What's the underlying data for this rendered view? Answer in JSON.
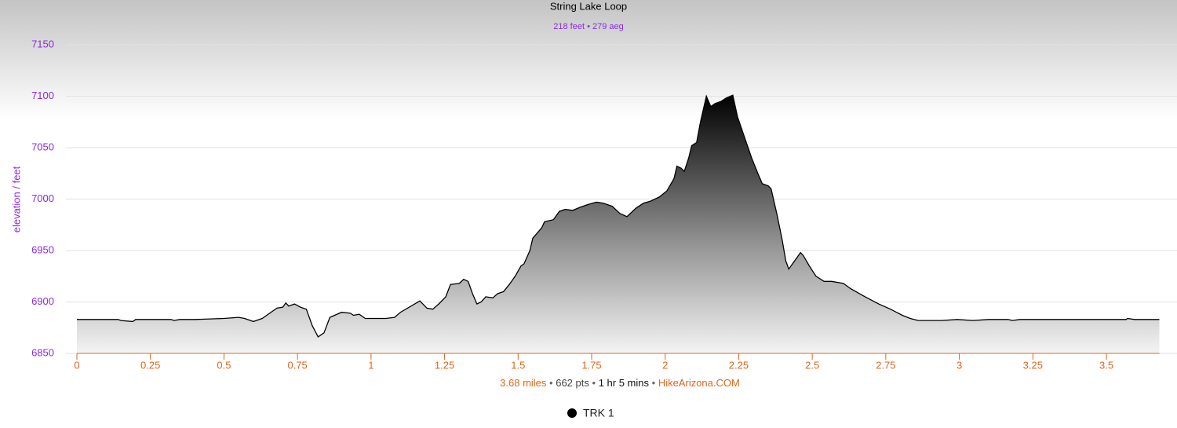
{
  "chart_data": {
    "type": "area",
    "title": "String Lake Loop",
    "subtitle": "218 feet • 279 aeg",
    "y_label": "elevation / feet",
    "footer": [
      "3.68 miles",
      "662 pts",
      "1 hr 5 mins",
      "HikeArizona.COM"
    ],
    "footer_separator": "•",
    "x": [
      0,
      0.14,
      0.15,
      0.19,
      0.2,
      0.32,
      0.33,
      0.35,
      0.4,
      0.5,
      0.55,
      0.57,
      0.6,
      0.63,
      0.66,
      0.68,
      0.7,
      0.71,
      0.72,
      0.74,
      0.76,
      0.78,
      0.8,
      0.82,
      0.84,
      0.86,
      0.9,
      0.93,
      0.94,
      0.96,
      0.98,
      1.05,
      1.08,
      1.1,
      1.166,
      1.19,
      1.21,
      1.23,
      1.254,
      1.27,
      1.3,
      1.315,
      1.33,
      1.345,
      1.36,
      1.374,
      1.39,
      1.414,
      1.43,
      1.45,
      1.47,
      1.49,
      1.51,
      1.52,
      1.54,
      1.55,
      1.58,
      1.59,
      1.62,
      1.64,
      1.66,
      1.686,
      1.71,
      1.74,
      1.766,
      1.79,
      1.82,
      1.846,
      1.87,
      1.9,
      1.926,
      1.95,
      1.98,
      2.006,
      2.03,
      2.04,
      2.054,
      2.065,
      2.08,
      2.09,
      2.107,
      2.12,
      2.14,
      2.155,
      2.17,
      2.19,
      2.206,
      2.23,
      2.246,
      2.27,
      2.294,
      2.315,
      2.33,
      2.35,
      2.36,
      2.38,
      2.398,
      2.41,
      2.42,
      2.44,
      2.46,
      2.47,
      2.49,
      2.513,
      2.54,
      2.566,
      2.606,
      2.63,
      2.673,
      2.7,
      2.726,
      2.766,
      2.806,
      2.833,
      2.86,
      2.886,
      2.94,
      2.993,
      3.046,
      3.1,
      3.166,
      3.18,
      3.206,
      3.567,
      3.572,
      3.596,
      3.68
    ],
    "series": [
      {
        "name": "TRK 1",
        "color": "#000000",
        "values": [
          6883,
          6883,
          6882,
          6881,
          6883,
          6883,
          6882,
          6883,
          6883,
          6884,
          6885,
          6884,
          6881,
          6884,
          6890,
          6894,
          6895,
          6899,
          6896,
          6898,
          6895,
          6893,
          6877,
          6866,
          6870,
          6885,
          6890,
          6889,
          6887,
          6888,
          6884,
          6884,
          6885,
          6890,
          6901,
          6894,
          6893,
          6898,
          6905,
          6917,
          6918,
          6922,
          6920,
          6908,
          6898,
          6900,
          6905,
          6904,
          6908,
          6910,
          6917,
          6925,
          6935,
          6937,
          6950,
          6962,
          6972,
          6978,
          6980,
          6988,
          6990,
          6989,
          6992,
          6995,
          6997,
          6996,
          6993,
          6986,
          6983,
          6991,
          6996,
          6998,
          7002,
          7008,
          7020,
          7032,
          7030,
          7027,
          7040,
          7052,
          7055,
          7075,
          7100,
          7090,
          7093,
          7095,
          7098,
          7101,
          7080,
          7060,
          7040,
          7025,
          7015,
          7013,
          7010,
          6985,
          6960,
          6940,
          6932,
          6940,
          6948,
          6945,
          6935,
          6925,
          6920,
          6920,
          6918,
          6913,
          6906,
          6902,
          6898,
          6893,
          6887,
          6884,
          6882,
          6882,
          6882,
          6883,
          6882,
          6883,
          6883,
          6882,
          6883,
          6883,
          6884,
          6883,
          6883
        ]
      }
    ],
    "xlim": [
      0,
      3.68
    ],
    "xticks": [
      0,
      0.25,
      0.5,
      0.75,
      1,
      1.25,
      1.5,
      1.75,
      2,
      2.25,
      2.5,
      2.75,
      3,
      3.25,
      3.5
    ],
    "ylim": [
      6850,
      7150
    ],
    "yticks": [
      6850,
      6900,
      6950,
      7000,
      7050,
      7100,
      7150
    ],
    "grid": true
  }
}
